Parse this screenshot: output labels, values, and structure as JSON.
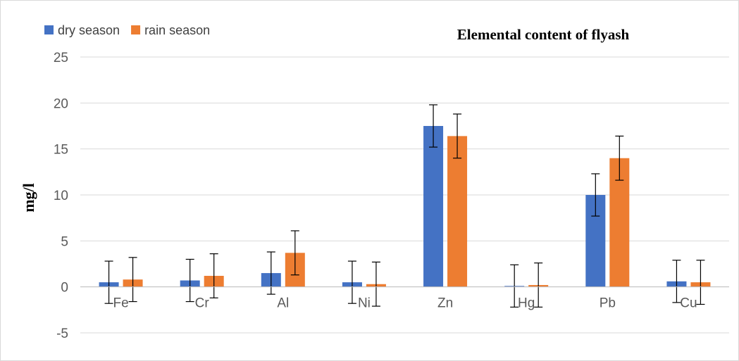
{
  "chart_data": {
    "type": "bar",
    "title": "Elemental content of flyash",
    "xlabel": "",
    "ylabel": "mg/l",
    "ylim": [
      -5,
      25
    ],
    "yticks": [
      -5,
      0,
      5,
      10,
      15,
      20,
      25
    ],
    "grid": true,
    "legend": "top-left",
    "categories": [
      "Fe",
      "Cr",
      "Al",
      "Ni",
      "Zn",
      "Hg",
      "Pb",
      "Cu"
    ],
    "series": [
      {
        "name": "dry season",
        "color": "#4472c4",
        "values": [
          0.5,
          0.7,
          1.5,
          0.5,
          17.5,
          0.1,
          10.0,
          0.6
        ],
        "error": [
          2.3,
          2.3,
          2.3,
          2.3,
          2.3,
          2.3,
          2.3,
          2.3
        ]
      },
      {
        "name": "rain season",
        "color": "#ed7d31",
        "values": [
          0.8,
          1.2,
          3.7,
          0.3,
          16.4,
          0.2,
          14.0,
          0.5
        ],
        "error": [
          2.4,
          2.4,
          2.4,
          2.4,
          2.4,
          2.4,
          2.4,
          2.4
        ]
      }
    ]
  }
}
